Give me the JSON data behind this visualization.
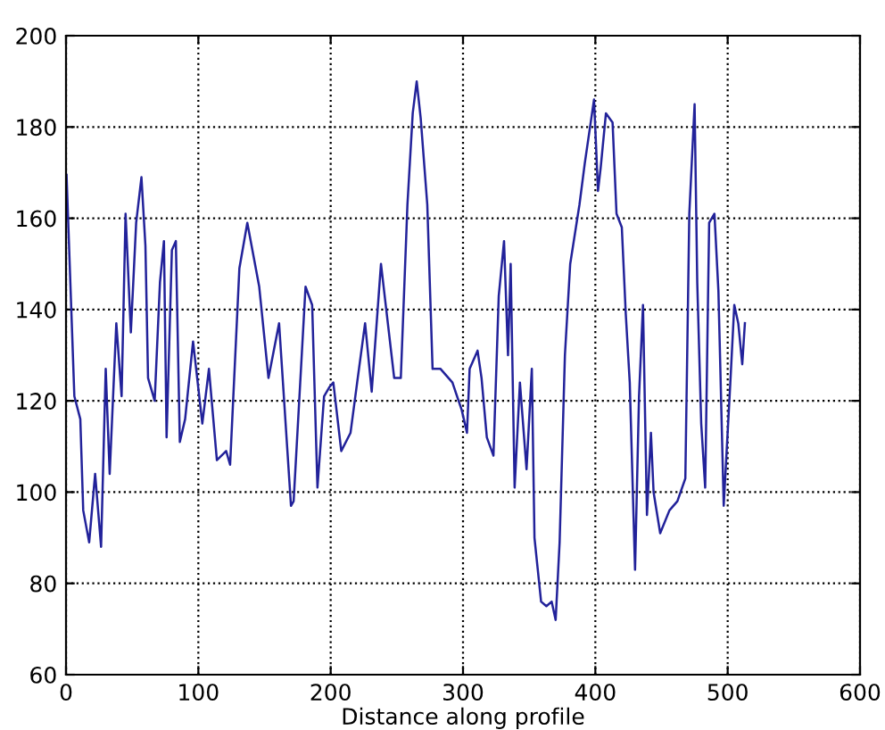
{
  "chart_data": {
    "type": "line",
    "xlabel": "Distance along profile",
    "xlim": [
      0,
      600
    ],
    "ylim": [
      60,
      200
    ],
    "xticks": [
      0,
      100,
      200,
      300,
      400,
      500,
      600
    ],
    "yticks": [
      60,
      80,
      100,
      120,
      140,
      160,
      180,
      200
    ],
    "grid": true,
    "line_style": "solid",
    "marker": "none",
    "series": [
      {
        "color": "#22229a",
        "x": [
          0.4,
          6.3,
          10.8,
          13,
          17.5,
          22,
          26.5,
          30,
          33,
          38,
          42,
          45,
          49,
          53,
          57,
          60,
          62,
          67,
          71,
          74,
          76,
          80,
          83,
          86,
          90,
          96,
          103,
          108,
          114,
          121,
          124,
          131,
          137,
          146,
          153,
          161,
          170,
          172,
          181,
          186,
          190,
          195,
          199,
          202,
          208,
          215,
          220,
          226,
          231,
          238,
          242,
          248,
          253,
          258,
          262,
          265,
          268,
          273,
          277,
          283,
          292,
          299,
          303,
          305,
          311,
          314,
          318,
          323,
          327,
          331,
          334,
          336,
          339,
          343,
          348,
          352,
          354,
          359,
          363,
          367,
          370,
          373,
          377,
          381,
          388,
          392,
          399,
          402,
          404,
          408,
          413,
          416,
          420,
          423,
          426,
          430,
          433,
          436,
          439,
          442,
          444,
          449,
          456,
          462,
          468,
          471,
          475,
          477,
          480,
          483,
          486,
          490,
          493,
          497,
          502,
          505,
          508,
          511,
          513
        ],
        "values": [
          169.5,
          121,
          116,
          96,
          89,
          104,
          88,
          127,
          104,
          137,
          121,
          161,
          135,
          159,
          169,
          154,
          125,
          120,
          146,
          155,
          112,
          153,
          155,
          111,
          116,
          133,
          115,
          127,
          107,
          109,
          106,
          149,
          159,
          145,
          125,
          137,
          97,
          98,
          145,
          141,
          101,
          121,
          123,
          124,
          109,
          113,
          124,
          137,
          122,
          150,
          140,
          125,
          125,
          163,
          183,
          190,
          182,
          163,
          127,
          127,
          124,
          118,
          113,
          127,
          131,
          125,
          112,
          108,
          143,
          155,
          130,
          150,
          101,
          124,
          105,
          127,
          90,
          76,
          75,
          76,
          72,
          89,
          130,
          150,
          163,
          172,
          186,
          166,
          171,
          183,
          181,
          161,
          158,
          139,
          124,
          83,
          121,
          141,
          95,
          113,
          100,
          91,
          96,
          98,
          103,
          161,
          185,
          146,
          115,
          101,
          159,
          161,
          144,
          97,
          124,
          141,
          137,
          128,
          137
        ]
      }
    ]
  }
}
